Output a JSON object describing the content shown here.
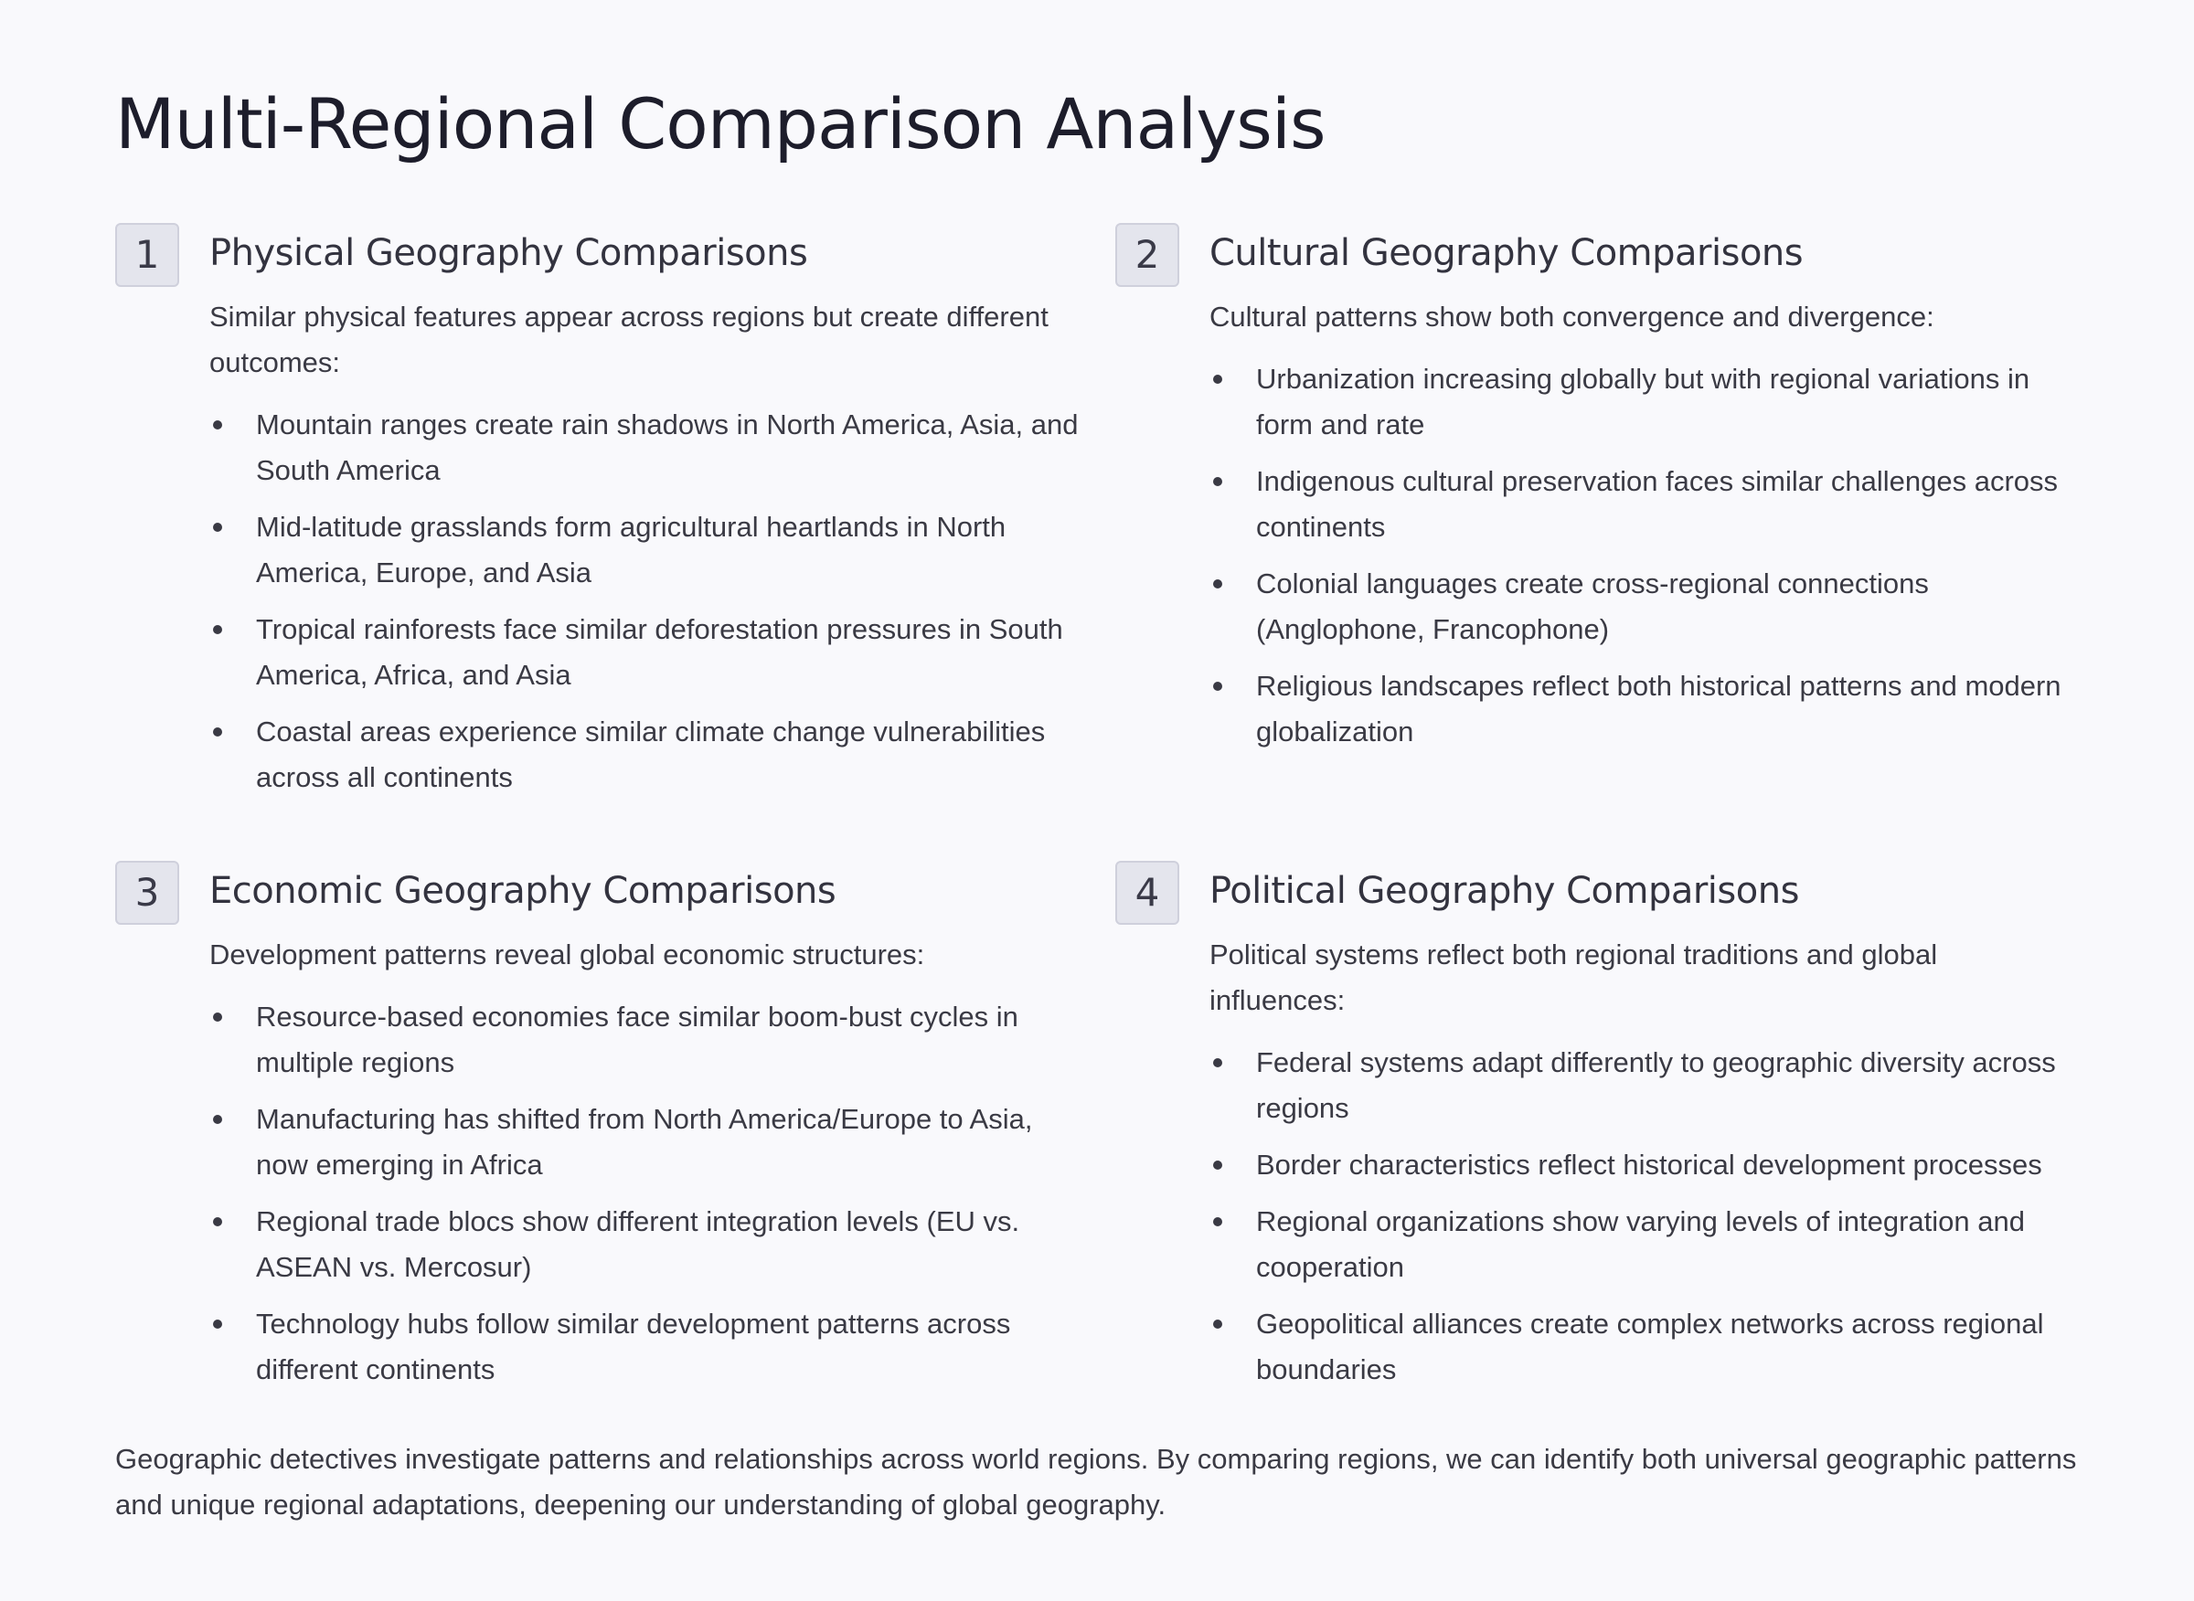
{
  "title": "Multi-Regional Comparison Analysis",
  "sections": [
    {
      "number": "1",
      "heading": "Physical Geography Comparisons",
      "intro": "Similar physical features appear across regions but create different outcomes:",
      "bullets": [
        "Mountain ranges create rain shadows in North America, Asia, and South America",
        "Mid-latitude grasslands form agricultural heartlands in North America, Europe, and Asia",
        "Tropical rainforests face similar deforestation pressures in South America, Africa, and Asia",
        "Coastal areas experience similar climate change vulnerabilities across all continents"
      ]
    },
    {
      "number": "2",
      "heading": "Cultural Geography Comparisons",
      "intro": "Cultural patterns show both convergence and divergence:",
      "bullets": [
        "Urbanization increasing globally but with regional variations in form and rate",
        "Indigenous cultural preservation faces similar challenges across continents",
        "Colonial languages create cross-regional connections (Anglophone, Francophone)",
        "Religious landscapes reflect both historical patterns and modern globalization"
      ]
    },
    {
      "number": "3",
      "heading": "Economic Geography Comparisons",
      "intro": "Development patterns reveal global economic structures:",
      "bullets": [
        "Resource-based economies face similar boom-bust cycles in multiple regions",
        "Manufacturing has shifted from North America/Europe to Asia, now emerging in Africa",
        "Regional trade blocs show different integration levels (EU vs. ASEAN vs. Mercosur)",
        "Technology hubs follow similar development patterns across different continents"
      ]
    },
    {
      "number": "4",
      "heading": "Political Geography Comparisons",
      "intro": "Political systems reflect both regional traditions and global influences:",
      "bullets": [
        "Federal systems adapt differently to geographic diversity across regions",
        "Border characteristics reflect historical development processes",
        "Regional organizations show varying levels of integration and cooperation",
        "Geopolitical alliances create complex networks across regional boundaries"
      ]
    }
  ],
  "footer": "Geographic detectives investigate patterns and relationships across world regions. By comparing regions, we can identify both universal geographic patterns and unique regional adaptations, deepening our understanding of global geography."
}
